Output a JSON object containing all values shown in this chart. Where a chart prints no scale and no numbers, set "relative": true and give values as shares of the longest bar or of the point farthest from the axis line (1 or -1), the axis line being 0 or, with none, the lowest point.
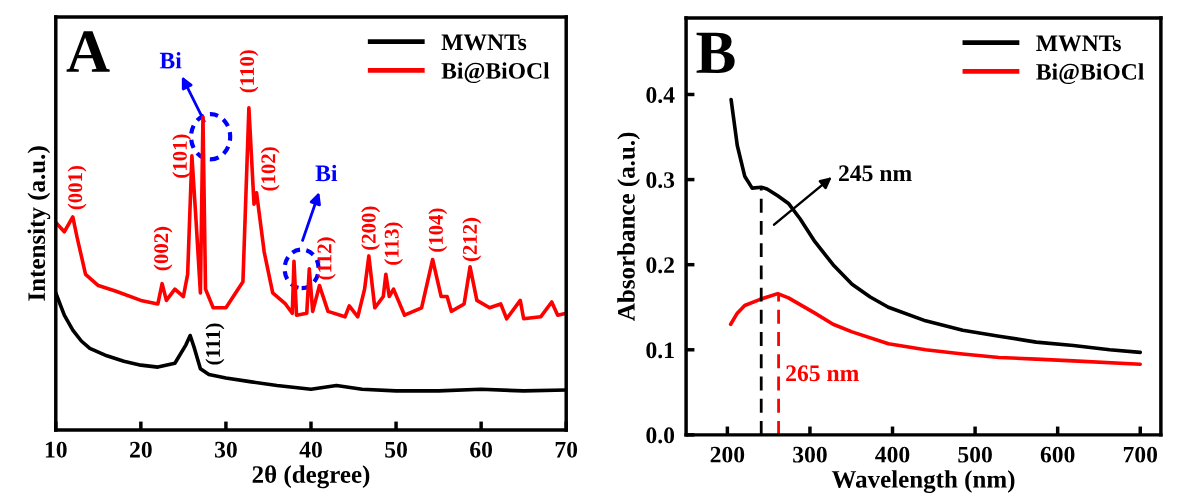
{
  "chart_data": [
    {
      "type": "line",
      "xlabel": "2θ (degree)",
      "ylabel": "Intensity (a.u.)",
      "relative": true,
      "xlim": [
        10,
        70
      ],
      "xticks": [
        10,
        20,
        30,
        40,
        50,
        60,
        70
      ],
      "legend": "top right",
      "tick_labels": "x",
      "line_style": "solid",
      "series": [
        {
          "name": "MWNTs",
          "color": "#000000",
          "x": [
            10,
            11,
            12,
            13,
            14,
            16,
            18,
            20,
            22,
            24,
            25.3,
            25.8,
            26.3,
            27,
            28,
            30,
            33,
            36,
            40,
            43,
            46,
            50,
            55,
            60,
            65,
            70
          ],
          "values": [
            0.425,
            0.356,
            0.31,
            0.276,
            0.253,
            0.23,
            0.213,
            0.201,
            0.195,
            0.207,
            0.264,
            0.293,
            0.253,
            0.19,
            0.172,
            0.161,
            0.149,
            0.138,
            0.126,
            0.138,
            0.126,
            0.121,
            0.121,
            0.126,
            0.121,
            0.124
          ]
        },
        {
          "name": "Bi@BiOCl",
          "color": "#ff0000",
          "x": [
            10,
            11,
            12,
            12.5,
            13.5,
            15,
            17,
            20,
            22,
            22.5,
            23,
            24,
            25,
            25.5,
            26,
            26.5,
            27,
            27.3,
            27.6,
            28.5,
            30,
            32,
            32.7,
            33.3,
            33.6,
            34.5,
            35.5,
            37,
            37.8,
            38,
            38.3,
            39.5,
            39.8,
            40.2,
            41,
            42,
            44,
            44.5,
            45.5,
            46.3,
            46.8,
            47.5,
            48.5,
            48.8,
            49.2,
            49.7,
            51,
            53,
            54.3,
            55.3,
            56,
            56.5,
            58,
            58.7,
            59.5,
            61,
            62.3,
            63,
            64.6,
            65,
            67,
            68.3,
            69,
            70
          ],
          "values": [
            0.644,
            0.615,
            0.661,
            0.598,
            0.483,
            0.448,
            0.431,
            0.402,
            0.391,
            0.454,
            0.402,
            0.437,
            0.414,
            0.483,
            0.851,
            0.644,
            0.425,
            0.971,
            0.437,
            0.379,
            0.379,
            0.46,
            1.0,
            0.701,
            0.736,
            0.552,
            0.425,
            0.391,
            0.362,
            0.523,
            0.356,
            0.362,
            0.5,
            0.368,
            0.448,
            0.368,
            0.351,
            0.385,
            0.351,
            0.437,
            0.54,
            0.379,
            0.414,
            0.483,
            0.414,
            0.437,
            0.356,
            0.379,
            0.529,
            0.414,
            0.414,
            0.368,
            0.391,
            0.506,
            0.402,
            0.379,
            0.391,
            0.345,
            0.402,
            0.345,
            0.351,
            0.397,
            0.356,
            0.362
          ]
        }
      ],
      "annotations": [
        "A",
        "(001)",
        "(002)",
        "(101)",
        "(110)",
        "(102)",
        "(112)",
        "(200)",
        "(113)",
        "(104)",
        "(212)",
        "(111)",
        "Bi",
        "Bi"
      ]
    },
    {
      "type": "line",
      "xlabel": "Wavelength (nm)",
      "ylabel": "Absorbance (a.u.)",
      "xlim": [
        150,
        725
      ],
      "xticks": [
        200,
        300,
        400,
        500,
        600,
        700
      ],
      "ylim": [
        0,
        0.49
      ],
      "yticks": [
        {
          "value": 0,
          "label": "0.0"
        },
        0.1,
        0.2,
        0.3,
        0.4
      ],
      "legend": "top right",
      "line_style": "solid",
      "series": [
        {
          "name": "MWNTs",
          "color": "#000000",
          "x": [
            204.5,
            212,
            221,
            230,
            241,
            248,
            261,
            274,
            288,
            306,
            328,
            351,
            373,
            395,
            440,
            485,
            529,
            574,
            619,
            663,
            700
          ],
          "values": [
            0.394,
            0.34,
            0.304,
            0.29,
            0.291,
            0.289,
            0.281,
            0.272,
            0.254,
            0.227,
            0.2,
            0.177,
            0.162,
            0.15,
            0.134,
            0.123,
            0.116,
            0.109,
            0.105,
            0.1,
            0.097
          ]
        },
        {
          "name": "Bi@BiOCl",
          "color": "#ff0000",
          "x": [
            204,
            212,
            221,
            239,
            261,
            274,
            306,
            328,
            351,
            395,
            440,
            485,
            529,
            574,
            619,
            700
          ],
          "values": [
            0.13,
            0.143,
            0.152,
            0.159,
            0.166,
            0.161,
            0.143,
            0.13,
            0.121,
            0.107,
            0.1,
            0.095,
            0.091,
            0.089,
            0.087,
            0.083
          ]
        },
        {
          "color": "#000000",
          "line_style": "dashed",
          "x": [
            241,
            241
          ],
          "values": [
            0,
            0.29
          ]
        },
        {
          "color": "#ff0000",
          "line_style": "dashed",
          "x": [
            262,
            262
          ],
          "values": [
            0,
            0.166
          ]
        }
      ],
      "annotations": [
        "B",
        "245 nm",
        "265 nm"
      ]
    }
  ]
}
